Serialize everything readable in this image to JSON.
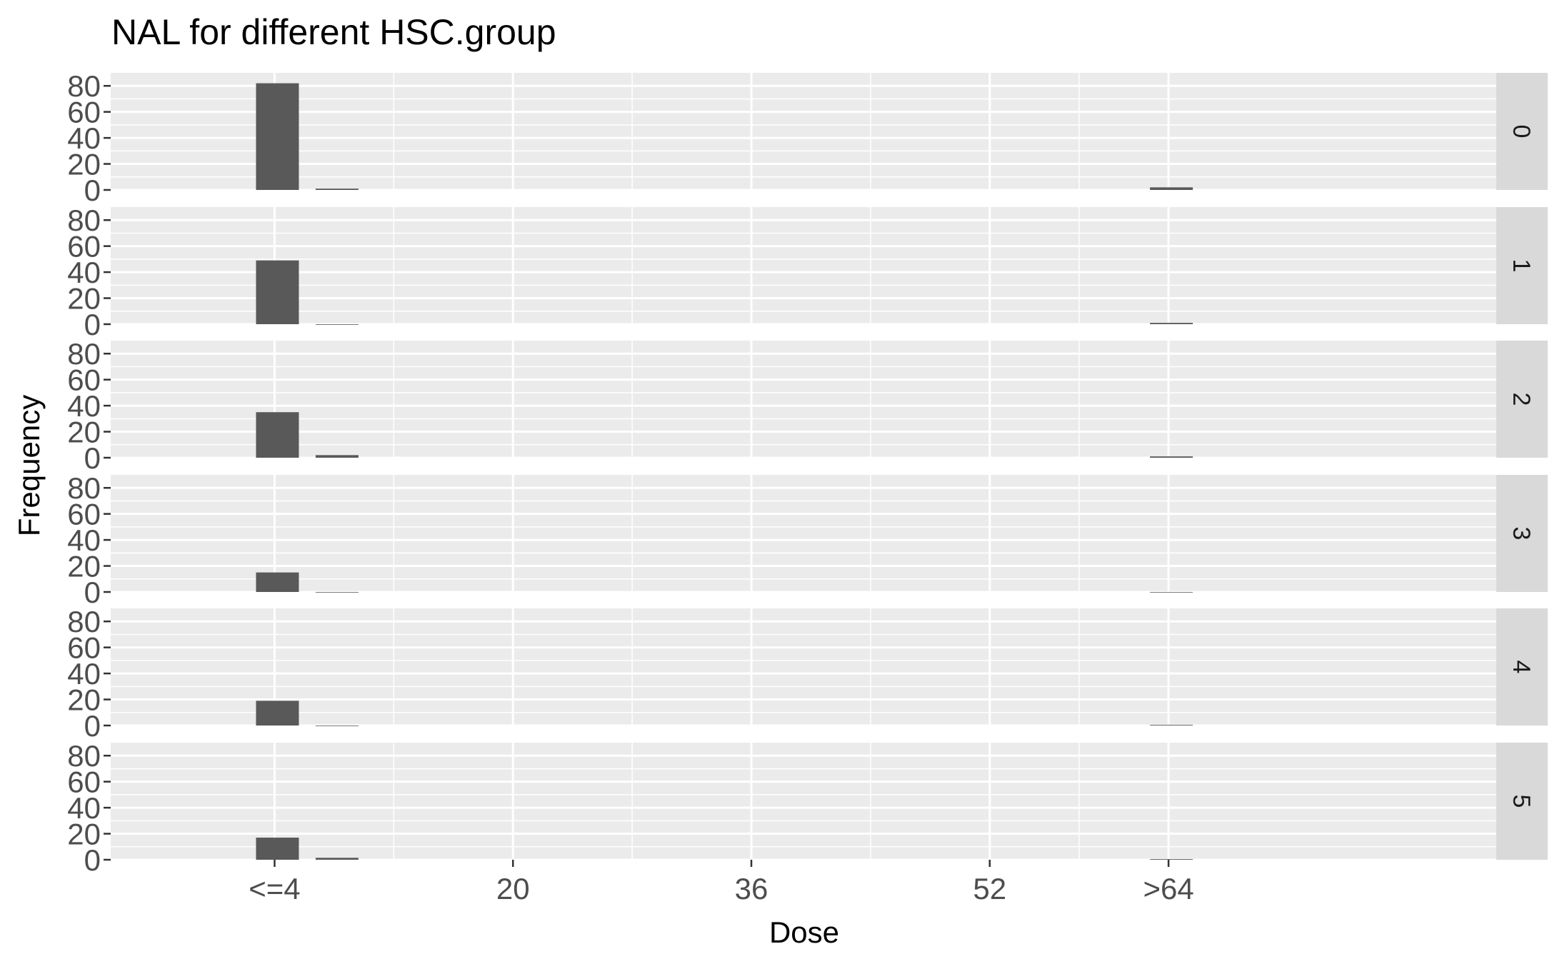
{
  "chart_data": {
    "type": "bar",
    "title": "NAL for different HSC.group",
    "xlabel": "Dose",
    "ylabel": "Frequency",
    "facet_variable": "HSC.group",
    "x_ticks": [
      {
        "label": "<=4",
        "value": 4
      },
      {
        "label": "20",
        "value": 20
      },
      {
        "label": "36",
        "value": 36
      },
      {
        "label": "52",
        "value": 52
      },
      {
        "label": ">64",
        "value": 64
      }
    ],
    "xlim": [
      -7,
      86
    ],
    "ylim": [
      0,
      90
    ],
    "y_ticks": [
      0,
      20,
      40,
      60,
      80
    ],
    "bar_positions": [
      4,
      8,
      64
    ],
    "panels": [
      {
        "label": "0",
        "values": [
          82,
          1,
          2
        ]
      },
      {
        "label": "1",
        "values": [
          49,
          0,
          1
        ]
      },
      {
        "label": "2",
        "values": [
          35,
          2,
          1
        ]
      },
      {
        "label": "3",
        "values": [
          15,
          0,
          0
        ]
      },
      {
        "label": "4",
        "values": [
          19,
          0,
          0.5
        ]
      },
      {
        "label": "5",
        "values": [
          17,
          1.5,
          0.5
        ]
      }
    ],
    "colors": {
      "panel_bg": "#ebebeb",
      "grid": "#ffffff",
      "bar": "#595959",
      "strip_bg": "#d9d9d9"
    }
  }
}
